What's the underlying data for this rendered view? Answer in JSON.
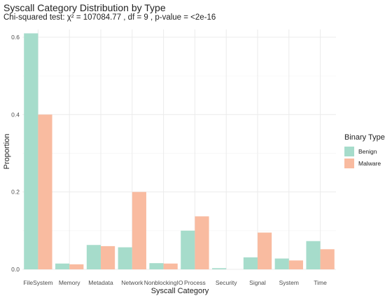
{
  "chart_data": {
    "type": "bar",
    "title": "Syscall Category Distribution by Type",
    "subtitle": "Chi-squared test: χ² = 107084.77 , df = 9 , p-value = <2e-16",
    "xlabel": "Syscall Category",
    "ylabel": "Proportion",
    "ylim": [
      0,
      0.62
    ],
    "yticks": [
      "0.0",
      "0.2",
      "0.4",
      "0.6"
    ],
    "ytick_values": [
      0,
      0.2,
      0.4,
      0.6
    ],
    "grid": true,
    "legend_position": "right",
    "legend_title": "Binary Type",
    "categories": [
      "FileSystem",
      "Memory",
      "Metadata",
      "Network",
      "NonblockingIO",
      "Process",
      "Security",
      "Signal",
      "System",
      "Time"
    ],
    "series": [
      {
        "name": "Benign",
        "color": "#a6dccb",
        "values": [
          0.61,
          0.015,
          0.063,
          0.057,
          0.016,
          0.1,
          0.003,
          0.031,
          0.028,
          0.073
        ]
      },
      {
        "name": "Malware",
        "color": "#f9bba0",
        "values": [
          0.4,
          0.013,
          0.06,
          0.2,
          0.015,
          0.137,
          0.0,
          0.095,
          0.023,
          0.052
        ]
      }
    ]
  }
}
